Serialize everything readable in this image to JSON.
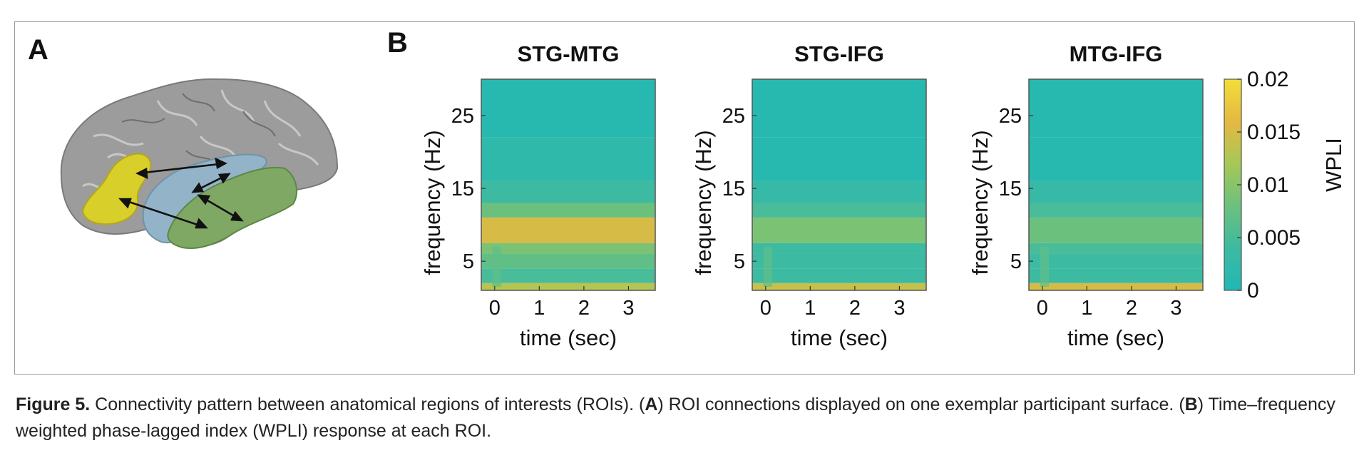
{
  "panel_a": {
    "letter": "A",
    "colors": {
      "ifg": "#d9cf2a",
      "stg": "#93b3c9",
      "mtg": "#7fa865",
      "cortex": "#9a9a9a",
      "arrow": "#111111"
    }
  },
  "panel_b": {
    "letter": "B"
  },
  "chart_data": [
    {
      "type": "heatmap",
      "title": "STG-MTG",
      "xlabel": "time (sec)",
      "ylabel": "frequency (Hz)",
      "x_ticks": [
        "0",
        "1",
        "2",
        "3"
      ],
      "y_ticks": [
        "5",
        "15",
        "25"
      ],
      "xlim": [
        -0.3,
        3.6
      ],
      "ylim": [
        1,
        30
      ],
      "bands": [
        {
          "f_from": 1,
          "f_to": 2,
          "wpli": 0.013
        },
        {
          "f_from": 2,
          "f_to": 4,
          "wpli": 0.005
        },
        {
          "f_from": 4,
          "f_to": 6,
          "wpli": 0.007
        },
        {
          "f_from": 6,
          "f_to": 7.5,
          "wpli": 0.009
        },
        {
          "f_from": 7.5,
          "f_to": 11,
          "wpli": 0.015
        },
        {
          "f_from": 11,
          "f_to": 13,
          "wpli": 0.008
        },
        {
          "f_from": 13,
          "f_to": 16,
          "wpli": 0.004
        },
        {
          "f_from": 16,
          "f_to": 22,
          "wpli": 0.002
        },
        {
          "f_from": 22,
          "f_to": 30,
          "wpli": 0.001
        }
      ]
    },
    {
      "type": "heatmap",
      "title": "STG-IFG",
      "xlabel": "time (sec)",
      "ylabel": "frequency (Hz)",
      "x_ticks": [
        "0",
        "1",
        "2",
        "3"
      ],
      "y_ticks": [
        "5",
        "15",
        "25"
      ],
      "xlim": [
        -0.3,
        3.6
      ],
      "ylim": [
        1,
        30
      ],
      "bands": [
        {
          "f_from": 1,
          "f_to": 2,
          "wpli": 0.014
        },
        {
          "f_from": 2,
          "f_to": 4,
          "wpli": 0.004
        },
        {
          "f_from": 4,
          "f_to": 6,
          "wpli": 0.004
        },
        {
          "f_from": 6,
          "f_to": 7.5,
          "wpli": 0.004
        },
        {
          "f_from": 7.5,
          "f_to": 11,
          "wpli": 0.009
        },
        {
          "f_from": 11,
          "f_to": 13,
          "wpli": 0.005
        },
        {
          "f_from": 13,
          "f_to": 16,
          "wpli": 0.003
        },
        {
          "f_from": 16,
          "f_to": 22,
          "wpli": 0.001
        },
        {
          "f_from": 22,
          "f_to": 30,
          "wpli": 0.001
        }
      ]
    },
    {
      "type": "heatmap",
      "title": "MTG-IFG",
      "xlabel": "time (sec)",
      "ylabel": "frequency (Hz)",
      "x_ticks": [
        "0",
        "1",
        "2",
        "3"
      ],
      "y_ticks": [
        "5",
        "15",
        "25"
      ],
      "xlim": [
        -0.3,
        3.6
      ],
      "ylim": [
        1,
        30
      ],
      "bands": [
        {
          "f_from": 1,
          "f_to": 2,
          "wpli": 0.015
        },
        {
          "f_from": 2,
          "f_to": 4,
          "wpli": 0.004
        },
        {
          "f_from": 4,
          "f_to": 6,
          "wpli": 0.004
        },
        {
          "f_from": 6,
          "f_to": 7.5,
          "wpli": 0.005
        },
        {
          "f_from": 7.5,
          "f_to": 11,
          "wpli": 0.008
        },
        {
          "f_from": 11,
          "f_to": 13,
          "wpli": 0.005
        },
        {
          "f_from": 13,
          "f_to": 16,
          "wpli": 0.003
        },
        {
          "f_from": 16,
          "f_to": 22,
          "wpli": 0.001
        },
        {
          "f_from": 22,
          "f_to": 30,
          "wpli": 0.001
        }
      ]
    }
  ],
  "colorbar": {
    "label": "WPLI",
    "range": [
      0,
      0.02
    ],
    "ticks": [
      "0",
      "0.005",
      "0.01",
      "0.015",
      "0.02"
    ],
    "tick_values": [
      0,
      0.005,
      0.01,
      0.015,
      0.02
    ],
    "colormap": [
      "#20b8b4",
      "#3dbaa2",
      "#6cc07e",
      "#a6c857",
      "#e6b840",
      "#f2de3a"
    ]
  },
  "caption": {
    "label": "Figure 5.",
    "text_1": " Connectivity pattern between anatomical regions of interests (ROIs). (",
    "ref_a": "A",
    "text_2": ") ROI connections displayed on one exemplar participant surface. (",
    "ref_b": "B",
    "text_3": ") Time–frequency weighted phase-lagged index (WPLI) response at each ROI."
  }
}
